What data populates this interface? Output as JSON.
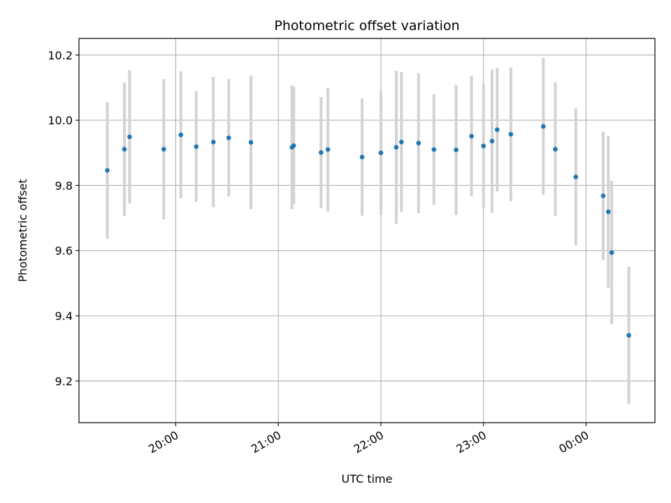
{
  "chart_data": {
    "type": "scatter",
    "title": "Photometric offset variation",
    "xlabel": "UTC time",
    "ylabel": "Photometric offset",
    "x_ticks": [
      "20:00",
      "21:00",
      "22:00",
      "23:00",
      "00:00"
    ],
    "x_tick_hours": [
      20,
      21,
      22,
      23,
      24
    ],
    "y_ticks": [
      "9.2",
      "9.4",
      "9.6",
      "9.8",
      "10.0",
      "10.2"
    ],
    "y_tick_values": [
      9.2,
      9.4,
      9.6,
      9.8,
      10.0,
      10.2
    ],
    "xlim_hours": [
      19.057,
      24.671
    ],
    "ylim": [
      9.072,
      10.251
    ],
    "grid": true,
    "point_color": "#1f77b4",
    "errorbar_color": "#d3d3d3",
    "points": [
      {
        "x": "19:20",
        "y": 9.846,
        "err": 0.21
      },
      {
        "x": "19:30",
        "y": 9.911,
        "err": 0.205
      },
      {
        "x": "19:33",
        "y": 9.949,
        "err": 0.205
      },
      {
        "x": "19:53",
        "y": 9.911,
        "err": 0.215
      },
      {
        "x": "20:03",
        "y": 9.955,
        "err": 0.195
      },
      {
        "x": "20:12",
        "y": 9.919,
        "err": 0.17
      },
      {
        "x": "20:22",
        "y": 9.933,
        "err": 0.2
      },
      {
        "x": "20:31",
        "y": 9.946,
        "err": 0.18
      },
      {
        "x": "20:44",
        "y": 9.932,
        "err": 0.205
      },
      {
        "x": "21:08",
        "y": 9.917,
        "err": 0.19
      },
      {
        "x": "21:09",
        "y": 9.922,
        "err": 0.18
      },
      {
        "x": "21:25",
        "y": 9.901,
        "err": 0.17
      },
      {
        "x": "21:29",
        "y": 9.91,
        "err": 0.19
      },
      {
        "x": "21:49",
        "y": 9.887,
        "err": 0.18
      },
      {
        "x": "22:00",
        "y": 9.9,
        "err": 0.19
      },
      {
        "x": "22:09",
        "y": 9.917,
        "err": 0.235
      },
      {
        "x": "22:12",
        "y": 9.933,
        "err": 0.215
      },
      {
        "x": "22:22",
        "y": 9.93,
        "err": 0.215
      },
      {
        "x": "22:31",
        "y": 9.91,
        "err": 0.17
      },
      {
        "x": "22:44",
        "y": 9.909,
        "err": 0.2
      },
      {
        "x": "22:53",
        "y": 9.951,
        "err": 0.185
      },
      {
        "x": "23:00",
        "y": 9.921,
        "err": 0.19
      },
      {
        "x": "23:05",
        "y": 9.936,
        "err": 0.22
      },
      {
        "x": "23:08",
        "y": 9.971,
        "err": 0.19
      },
      {
        "x": "23:16",
        "y": 9.957,
        "err": 0.205
      },
      {
        "x": "23:35",
        "y": 9.981,
        "err": 0.21
      },
      {
        "x": "23:42",
        "y": 9.911,
        "err": 0.205
      },
      {
        "x": "23:54",
        "y": 9.826,
        "err": 0.21
      },
      {
        "x": "00:10",
        "y": 9.768,
        "err": 0.197
      },
      {
        "x": "00:13",
        "y": 9.719,
        "err": 0.233
      },
      {
        "x": "00:15",
        "y": 9.594,
        "err": 0.22
      },
      {
        "x": "00:25",
        "y": 9.34,
        "err": 0.21
      }
    ]
  }
}
